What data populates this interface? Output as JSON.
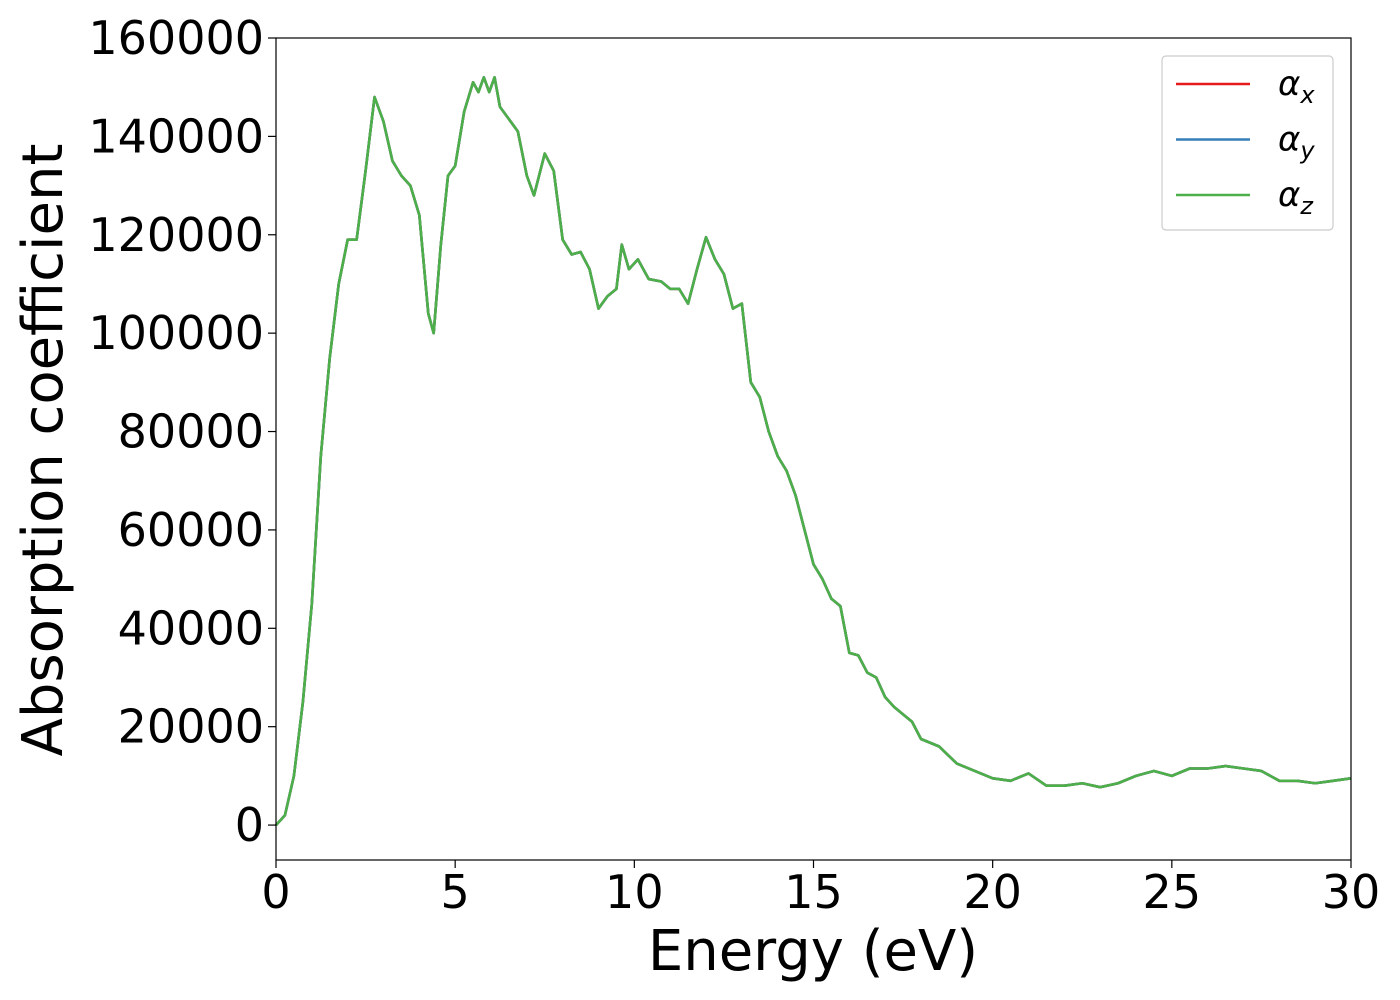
{
  "chart_data": {
    "type": "line",
    "x_label": "Energy (eV)",
    "y_label": "Absorption coefficient",
    "x": [
      0,
      0.25,
      0.5,
      0.75,
      1.0,
      1.25,
      1.5,
      1.75,
      2.0,
      2.25,
      2.5,
      2.75,
      3.0,
      3.25,
      3.5,
      3.75,
      4.0,
      4.25,
      4.4,
      4.6,
      4.8,
      5.0,
      5.25,
      5.5,
      5.65,
      5.8,
      5.95,
      6.1,
      6.25,
      6.5,
      6.75,
      7.0,
      7.2,
      7.5,
      7.75,
      8.0,
      8.25,
      8.5,
      8.75,
      9.0,
      9.25,
      9.5,
      9.65,
      9.85,
      10.1,
      10.4,
      10.75,
      11.0,
      11.25,
      11.5,
      11.75,
      12.0,
      12.25,
      12.5,
      12.75,
      13.0,
      13.25,
      13.5,
      13.75,
      14.0,
      14.25,
      14.5,
      14.75,
      15.0,
      15.25,
      15.5,
      15.75,
      16.0,
      16.25,
      16.5,
      16.75,
      17.0,
      17.25,
      17.5,
      17.75,
      18.0,
      18.5,
      19.0,
      19.5,
      20.0,
      20.5,
      21.0,
      21.5,
      22.0,
      22.5,
      23.0,
      23.5,
      24.0,
      24.5,
      25.0,
      25.5,
      26.0,
      26.5,
      27.0,
      27.5,
      28.0,
      28.5,
      29.0,
      29.5,
      30.0
    ],
    "series": [
      {
        "name": "αx",
        "color": "#e41a1c",
        "values": [
          0,
          2000,
          10000,
          25000,
          45000,
          75000,
          95000,
          110000,
          119000,
          119000,
          133000,
          148000,
          143000,
          135000,
          132000,
          130000,
          124000,
          104000,
          100000,
          118000,
          132000,
          134000,
          145000,
          151000,
          149000,
          152000,
          149000,
          152000,
          146000,
          143500,
          141000,
          132000,
          128000,
          136500,
          133000,
          119000,
          116000,
          116500,
          113000,
          105000,
          107500,
          109000,
          118000,
          113000,
          115000,
          111000,
          110500,
          109000,
          109000,
          106000,
          113000,
          119500,
          115000,
          112000,
          105000,
          106000,
          90000,
          87000,
          80000,
          75000,
          72000,
          67000,
          60000,
          53000,
          50000,
          46000,
          44500,
          35000,
          34500,
          31000,
          30000,
          26000,
          24000,
          22500,
          21000,
          17500,
          16000,
          12500,
          11000,
          9500,
          9000,
          10500,
          8000,
          8000,
          8500,
          7700,
          8500,
          10000,
          11000,
          10000,
          11500,
          11500,
          12000,
          11500,
          11000,
          9000,
          9000,
          8500,
          9000,
          9500
        ]
      },
      {
        "name": "αy",
        "color": "#377eb8",
        "values": [
          0,
          2000,
          10000,
          25000,
          45000,
          75000,
          95000,
          110000,
          119000,
          119000,
          133000,
          148000,
          143000,
          135000,
          132000,
          130000,
          124000,
          104000,
          100000,
          118000,
          132000,
          134000,
          145000,
          151000,
          149000,
          152000,
          149000,
          152000,
          146000,
          143500,
          141000,
          132000,
          128000,
          136500,
          133000,
          119000,
          116000,
          116500,
          113000,
          105000,
          107500,
          109000,
          118000,
          113000,
          115000,
          111000,
          110500,
          109000,
          109000,
          106000,
          113000,
          119500,
          115000,
          112000,
          105000,
          106000,
          90000,
          87000,
          80000,
          75000,
          72000,
          67000,
          60000,
          53000,
          50000,
          46000,
          44500,
          35000,
          34500,
          31000,
          30000,
          26000,
          24000,
          22500,
          21000,
          17500,
          16000,
          12500,
          11000,
          9500,
          9000,
          10500,
          8000,
          8000,
          8500,
          7700,
          8500,
          10000,
          11000,
          10000,
          11500,
          11500,
          12000,
          11500,
          11000,
          9000,
          9000,
          8500,
          9000,
          9500
        ]
      },
      {
        "name": "αz",
        "color": "#4daf4a",
        "values": [
          0,
          2000,
          10000,
          25000,
          45000,
          75000,
          95000,
          110000,
          119000,
          119000,
          133000,
          148000,
          143000,
          135000,
          132000,
          130000,
          124000,
          104000,
          100000,
          118000,
          132000,
          134000,
          145000,
          151000,
          149000,
          152000,
          149000,
          152000,
          146000,
          143500,
          141000,
          132000,
          128000,
          136500,
          133000,
          119000,
          116000,
          116500,
          113000,
          105000,
          107500,
          109000,
          118000,
          113000,
          115000,
          111000,
          110500,
          109000,
          109000,
          106000,
          113000,
          119500,
          115000,
          112000,
          105000,
          106000,
          90000,
          87000,
          80000,
          75000,
          72000,
          67000,
          60000,
          53000,
          50000,
          46000,
          44500,
          35000,
          34500,
          31000,
          30000,
          26000,
          24000,
          22500,
          21000,
          17500,
          16000,
          12500,
          11000,
          9500,
          9000,
          10500,
          8000,
          8000,
          8500,
          7700,
          8500,
          10000,
          11000,
          10000,
          11500,
          11500,
          12000,
          11500,
          11000,
          9000,
          9000,
          8500,
          9000,
          9500
        ]
      }
    ],
    "xlim": [
      0,
      30
    ],
    "xticks": [
      0,
      5,
      10,
      15,
      20,
      25,
      30
    ],
    "ylim": [
      -7100,
      160000
    ],
    "yticks": [
      0,
      20000,
      40000,
      60000,
      80000,
      100000,
      120000,
      140000,
      160000
    ],
    "grid": false,
    "legend_position": "upper-right"
  }
}
